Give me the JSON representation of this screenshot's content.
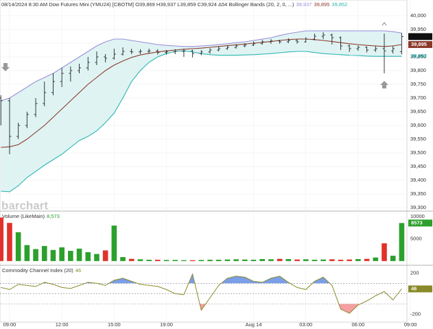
{
  "header": {
    "text": "08/14/2024 8:30 AM Dow Futures Mini (YMU24) [CBOTM] O39,869 H39,937 L39,859 C39,924 Δ54 Bollinger Bands  (20, 2, 0, ...)"
  },
  "watermark": "barchart",
  "chart_data": [
    {
      "type": "ohlc",
      "grid": true,
      "bar_color": "#222222",
      "fill_color": "#dff3f3",
      "x": [
        -0.5,
        0,
        0.5,
        1,
        1.5,
        2,
        2.5,
        3,
        3.5,
        4,
        4.5,
        5,
        5.5,
        6,
        6.5,
        7,
        7.5,
        8,
        8.5,
        9,
        9.5,
        10,
        10.5,
        11,
        11.5,
        12,
        12.5,
        13,
        13.5,
        14,
        14.5,
        15,
        15.5,
        16,
        16.5,
        17,
        17.5,
        18,
        18.5,
        19,
        19.5,
        20,
        20.5,
        21,
        21.5,
        22,
        22.5
      ],
      "xlim": [
        -0.55,
        22.8
      ],
      "xticks": [
        {
          "value": 0,
          "label": "09:00"
        },
        {
          "value": 3,
          "label": "12:00"
        },
        {
          "value": 6,
          "label": "15:00"
        },
        {
          "value": 9,
          "label": "19:00"
        },
        {
          "value": 14,
          "label": "Aug 14"
        },
        {
          "value": 17,
          "label": "03:00"
        },
        {
          "value": 20,
          "label": "06:00"
        },
        {
          "value": 23,
          "label": "09:00"
        }
      ],
      "ylim": [
        39290,
        40057.5
      ],
      "yticks": [
        {
          "value": 39300,
          "label": "39,300"
        },
        {
          "value": 39350,
          "label": "39,350"
        },
        {
          "value": 39400,
          "label": "39,400"
        },
        {
          "value": 39450,
          "label": "39,450"
        },
        {
          "value": 39500,
          "label": "39,500"
        },
        {
          "value": 39550,
          "label": "39,550"
        },
        {
          "value": 39600,
          "label": "39,600"
        },
        {
          "value": 39650,
          "label": "39,650"
        },
        {
          "value": 39700,
          "label": "39,700"
        },
        {
          "value": 39750,
          "label": "39,750"
        },
        {
          "value": 39800,
          "label": "39,800"
        },
        {
          "value": 39850,
          "label": "39,850"
        },
        {
          "value": 39900,
          "label": "39,900"
        },
        {
          "value": 39950,
          "label": "39,950"
        },
        {
          "value": 40000,
          "label": "40,000"
        }
      ],
      "open": [
        39700,
        39690,
        39560,
        39600,
        39640,
        39680,
        39720,
        39760,
        39790,
        39800,
        39810,
        39830,
        39850,
        39845,
        39860,
        39870,
        39868,
        39870,
        39872,
        39866,
        39868,
        39870,
        39872,
        39862,
        39868,
        39875,
        39880,
        39885,
        39890,
        39893,
        39898,
        39905,
        39908,
        39905,
        39910,
        39905,
        39915,
        39925,
        39930,
        39920,
        39890,
        39880,
        39885,
        39875,
        39880,
        39872,
        39869
      ],
      "high": [
        39710,
        39700,
        39610,
        39650,
        39700,
        39760,
        39790,
        39810,
        39815,
        39825,
        39850,
        39870,
        39860,
        39880,
        39885,
        39880,
        39878,
        39880,
        39878,
        39875,
        39878,
        39880,
        39876,
        39875,
        39882,
        39888,
        39892,
        39896,
        39900,
        39906,
        39912,
        39915,
        39912,
        39918,
        39915,
        39922,
        39935,
        39940,
        39935,
        39925,
        39895,
        39892,
        39888,
        39890,
        39935,
        39890,
        39937
      ],
      "low": [
        39600,
        39495,
        39550,
        39590,
        39630,
        39670,
        39710,
        39740,
        39760,
        39790,
        39800,
        39820,
        39830,
        39840,
        39855,
        39860,
        39860,
        39862,
        39858,
        39858,
        39860,
        39850,
        39848,
        39856,
        39862,
        39870,
        39876,
        39880,
        39885,
        39890,
        39895,
        39898,
        39898,
        39900,
        39898,
        39902,
        39910,
        39915,
        39895,
        39875,
        39868,
        39872,
        39866,
        39868,
        39790,
        39862,
        39859
      ],
      "close": [
        39690,
        39560,
        39600,
        39640,
        39680,
        39720,
        39760,
        39790,
        39800,
        39810,
        39830,
        39850,
        39845,
        39860,
        39870,
        39868,
        39870,
        39872,
        39866,
        39868,
        39870,
        39872,
        39862,
        39868,
        39875,
        39880,
        39885,
        39890,
        39893,
        39898,
        39905,
        39908,
        39905,
        39910,
        39905,
        39915,
        39925,
        39930,
        39920,
        39890,
        39880,
        39885,
        39875,
        39880,
        39872,
        39880,
        39924
      ],
      "close_color": "#111111",
      "bands": [
        {
          "color": "#9a8fd8",
          "current_label": "39,937",
          "values": [
            39690,
            39700,
            39720,
            39740,
            39760,
            39775,
            39790,
            39810,
            39830,
            39850,
            39870,
            39890,
            39905,
            39915,
            39915,
            39910,
            39905,
            39900,
            39895,
            39892,
            39890,
            39888,
            39888,
            39890,
            39892,
            39895,
            39898,
            39902,
            39905,
            39910,
            39915,
            39920,
            39928,
            39935,
            39940,
            39945,
            39945,
            39945,
            39945,
            39945,
            39945,
            39945,
            39945,
            39945,
            39945,
            39942,
            39937
          ]
        },
        {
          "color": "#8b3a2a",
          "current_label": "39,895",
          "values": [
            39520,
            39522,
            39530,
            39550,
            39575,
            39600,
            39630,
            39660,
            39690,
            39720,
            39750,
            39775,
            39800,
            39820,
            39835,
            39848,
            39857,
            39863,
            39868,
            39872,
            39875,
            39878,
            39880,
            39882,
            39885,
            39888,
            39891,
            39894,
            39897,
            39900,
            39903,
            39906,
            39910,
            39913,
            39915,
            39915,
            39913,
            39910,
            39906,
            39902,
            39898,
            39895,
            39892,
            39890,
            39888,
            39890,
            39895
          ]
        },
        {
          "color": "#2bb5b0",
          "current_label": "39,852",
          "values": [
            39360,
            39358,
            39380,
            39410,
            39432,
            39455,
            39475,
            39495,
            39520,
            39545,
            39560,
            39580,
            39610,
            39645,
            39700,
            39760,
            39800,
            39830,
            39850,
            39862,
            39870,
            39872,
            39868,
            39862,
            39858,
            39856,
            39856,
            39856,
            39857,
            39858,
            39860,
            39862,
            39865,
            39868,
            39870,
            39870,
            39866,
            39862,
            39860,
            39858,
            39856,
            39855,
            39853,
            39852,
            39852,
            39852,
            39852
          ]
        }
      ]
    },
    {
      "type": "volume",
      "title": "Volume  (LikeMain)",
      "current_label": "8,573",
      "up_color": "#2ca02c",
      "down_color": "#e0322b",
      "ylim": [
        -635,
        10950
      ],
      "yticks": [
        5000,
        10000
      ],
      "values": [
        9800,
        8600,
        6500,
        3600,
        2700,
        3400,
        2500,
        3100,
        2300,
        2800,
        2000,
        1600,
        2400,
        8000,
        900,
        500,
        400,
        300,
        300,
        250,
        250,
        200,
        200,
        250,
        300,
        300,
        350,
        400,
        350,
        300,
        450,
        400,
        500,
        450,
        350,
        400,
        300,
        350,
        400,
        300,
        350,
        450,
        500,
        800,
        4000,
        1200,
        8573
      ]
    },
    {
      "type": "cci",
      "title": "Commodity Channel Index (20)",
      "color": "#8a8a2a",
      "above_color": "#4f7ee0",
      "below_color": "#f08080",
      "ylim": [
        -276,
        262
      ],
      "yticks": [
        -200,
        200
      ],
      "levels": [
        100,
        0,
        -100
      ],
      "values": [
        60,
        40,
        90,
        80,
        70,
        110,
        90,
        60,
        50,
        80,
        110,
        100,
        80,
        130,
        150,
        120,
        90,
        80,
        70,
        40,
        0,
        -10,
        190,
        -160,
        -40,
        80,
        150,
        170,
        160,
        120,
        110,
        150,
        170,
        110,
        60,
        40,
        120,
        160,
        80,
        -150,
        -190,
        -110,
        -70,
        -20,
        20,
        -60,
        46
      ]
    }
  ]
}
